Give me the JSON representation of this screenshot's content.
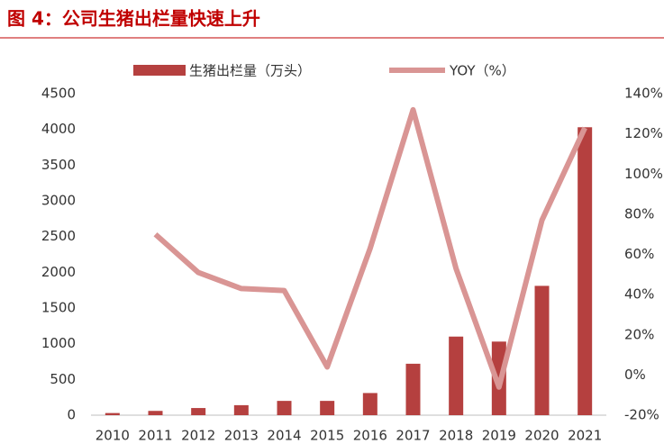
{
  "chart_data": {
    "type": "bar",
    "title": "图 4：公司生猪出栏量快速上升",
    "categories": [
      "2010",
      "2011",
      "2012",
      "2013",
      "2014",
      "2015",
      "2016",
      "2017",
      "2018",
      "2019",
      "2020",
      "2021"
    ],
    "series": [
      {
        "name": "生猪出栏量（万头）",
        "type": "bar",
        "color": "#b5403f",
        "values": [
          30,
          60,
          100,
          140,
          200,
          200,
          310,
          720,
          1100,
          1030,
          1810,
          4030
        ]
      },
      {
        "name": "YOY（%）",
        "type": "line",
        "axis": "y2",
        "color": "#d99594",
        "values": [
          null,
          70,
          51,
          43,
          42,
          4,
          63,
          132,
          53,
          -6,
          77,
          123
        ]
      }
    ],
    "ylim": [
      0,
      4500
    ],
    "yticks": [
      0,
      500,
      1000,
      1500,
      2000,
      2500,
      3000,
      3500,
      4000,
      4500
    ],
    "y2lim": [
      -20,
      140
    ],
    "y2ticks": [
      {
        "value": -20,
        "label": "-20%"
      },
      {
        "value": 0,
        "label": "0%"
      },
      {
        "value": 20,
        "label": "20%"
      },
      {
        "value": 40,
        "label": "40%"
      },
      {
        "value": 60,
        "label": "60%"
      },
      {
        "value": 80,
        "label": "80%"
      },
      {
        "value": 100,
        "label": "100%"
      },
      {
        "value": 120,
        "label": "120%"
      },
      {
        "value": 140,
        "label": "140%"
      }
    ],
    "grid": false,
    "legend": "top"
  }
}
